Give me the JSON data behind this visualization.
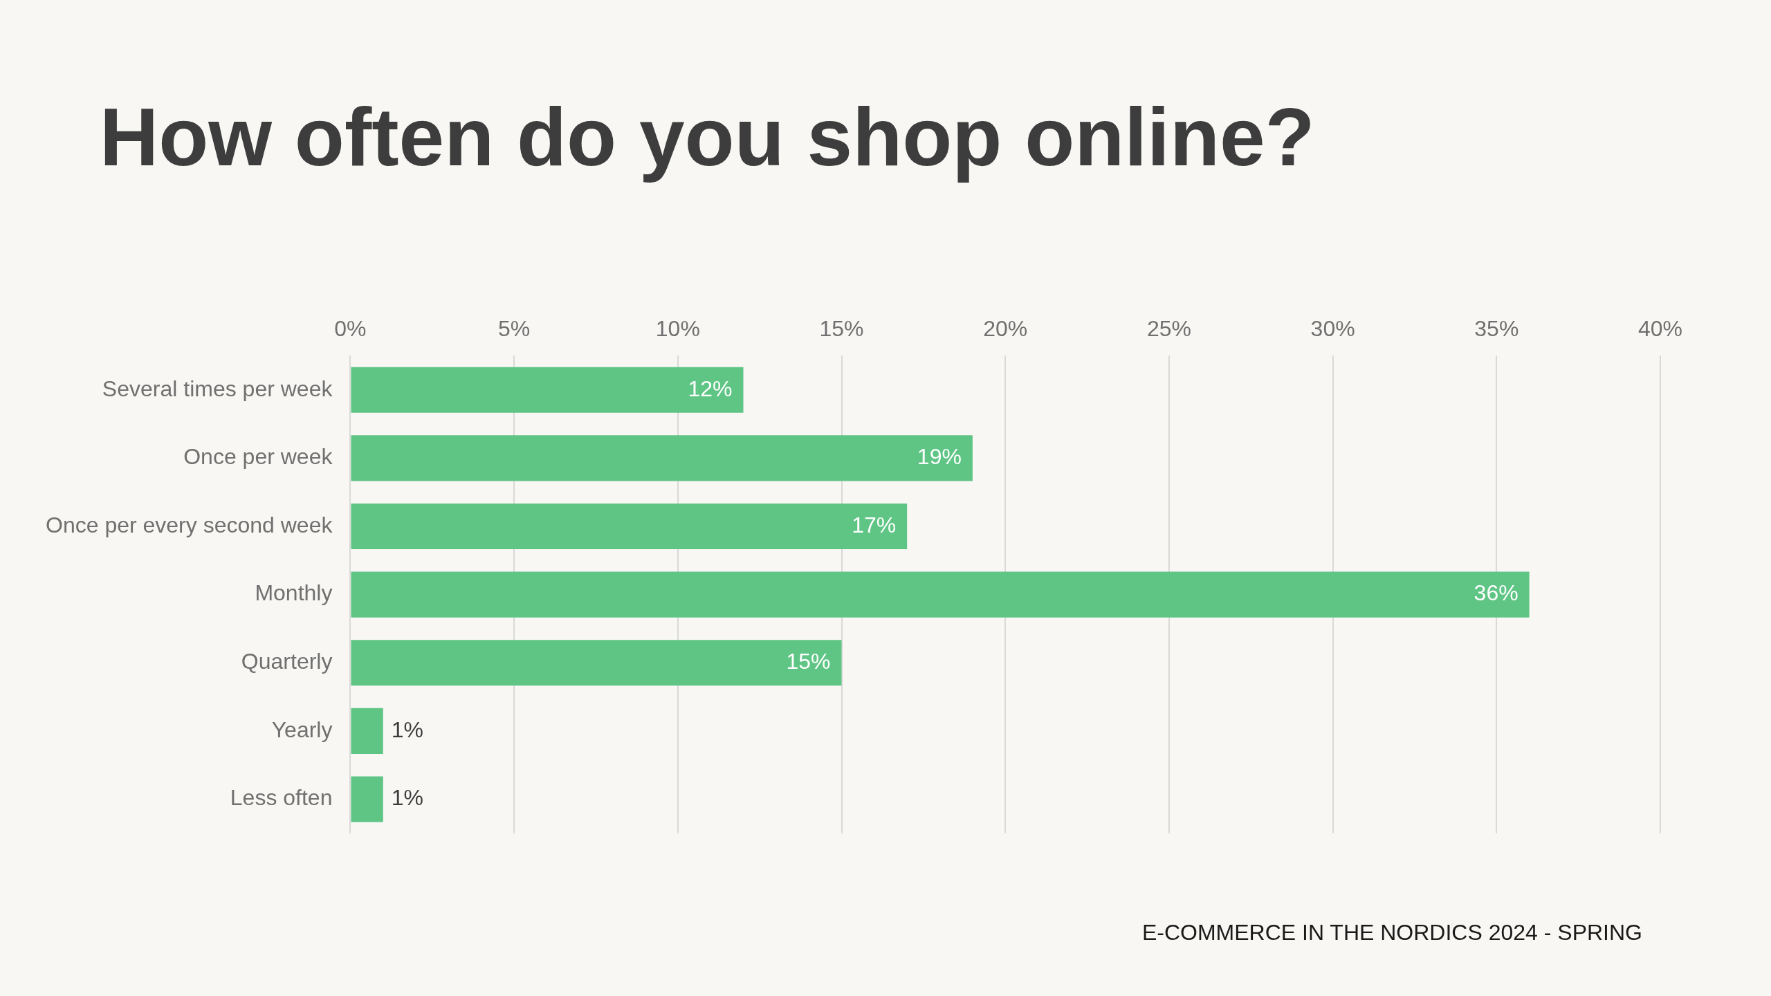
{
  "chart_data": {
    "type": "bar",
    "orientation": "horizontal",
    "title": "How often do you shop online?",
    "categories": [
      "Several times per week",
      "Once per week",
      "Once per every second week",
      "Monthly",
      "Quarterly",
      "Yearly",
      "Less often"
    ],
    "values": [
      12,
      19,
      17,
      36,
      15,
      1,
      1
    ],
    "value_labels": [
      "12%",
      "19%",
      "17%",
      "36%",
      "15%",
      "1%",
      "1%"
    ],
    "color": "#5fc585",
    "xlim": [
      0,
      40
    ],
    "xticks": [
      {
        "value": 0,
        "label": "0%"
      },
      {
        "value": 5,
        "label": "5%"
      },
      {
        "value": 10,
        "label": "10%"
      },
      {
        "value": 15,
        "label": "15%"
      },
      {
        "value": 20,
        "label": "20%"
      },
      {
        "value": 25,
        "label": "25%"
      },
      {
        "value": 30,
        "label": "30%"
      },
      {
        "value": 35,
        "label": "35%"
      },
      {
        "value": 40,
        "label": "40%"
      }
    ],
    "grid": "x",
    "annotations": [
      "E-COMMERCE IN THE NORDICS 2024 - SPRING"
    ]
  }
}
